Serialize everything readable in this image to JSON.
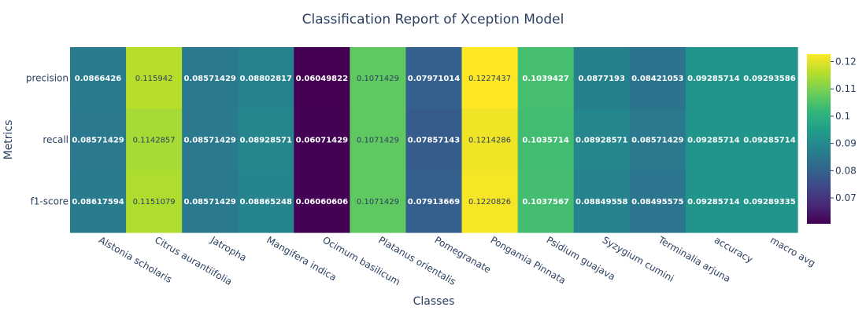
{
  "chart_data": {
    "type": "heatmap",
    "title": "Classification Report of Xception Model",
    "xlabel": "Classes",
    "ylabel": "Metrics",
    "x": [
      "Alstonia scholaris",
      "Citrus aurantiifolia",
      "Jatropha",
      "Mangifera indica",
      "Ocimum basilicum",
      "Platanus orientalis",
      "Pomegranate",
      "Pongamia Pinnata",
      "Psidium guajava",
      "Syzygium cumini",
      "Terminalia arjuna",
      "accuracy",
      "macro avg"
    ],
    "y": [
      "precision",
      "recall",
      "f1-score"
    ],
    "z": [
      [
        0.0866426,
        0.115942,
        0.08571429,
        0.08802817,
        0.06049822,
        0.1071429,
        0.07971014,
        0.1227437,
        0.1039427,
        0.0877193,
        0.08421053,
        0.09285714,
        0.09293586
      ],
      [
        0.08571429,
        0.1142857,
        0.08571429,
        0.08928571,
        0.06071429,
        0.1071429,
        0.07857143,
        0.1214286,
        0.1035714,
        0.08928571,
        0.08571429,
        0.09285714,
        0.09285714
      ],
      [
        0.08617594,
        0.1151079,
        0.08571429,
        0.08865248,
        0.06060606,
        0.1071429,
        0.07913669,
        0.1220826,
        0.1037567,
        0.08849558,
        0.08495575,
        0.09285714,
        0.09289335
      ]
    ],
    "text": [
      [
        "0.0866426",
        "0.115942",
        "0.08571429",
        "0.08802817",
        "0.06049822",
        "0.1071429",
        "0.07971014",
        "0.1227437",
        "0.1039427",
        "0.0877193",
        "0.08421053",
        "0.09285714",
        "0.09293586"
      ],
      [
        "0.08571429",
        "0.1142857",
        "0.08571429",
        "0.08928571",
        "0.06071429",
        "0.1071429",
        "0.07857143",
        "0.1214286",
        "0.1035714",
        "0.08928571",
        "0.08571429",
        "0.09285714",
        "0.09285714"
      ],
      [
        "0.08617594",
        "0.1151079",
        "0.08571429",
        "0.08865248",
        "0.06060606",
        "0.1071429",
        "0.07913669",
        "0.1220826",
        "0.1037567",
        "0.08849558",
        "0.08495575",
        "0.09285714",
        "0.09289335"
      ]
    ],
    "zmin": 0.06049822,
    "zmax": 0.1227437,
    "colorscale": "viridis",
    "colorbar_ticks": [
      0.07,
      0.08,
      0.09,
      0.1,
      0.11,
      0.12
    ],
    "colorbar_tick_labels": [
      "0.07",
      "0.08",
      "0.09",
      "0.1",
      "0.11",
      "0.12"
    ],
    "grid": false,
    "colorbar_placement": "right"
  }
}
